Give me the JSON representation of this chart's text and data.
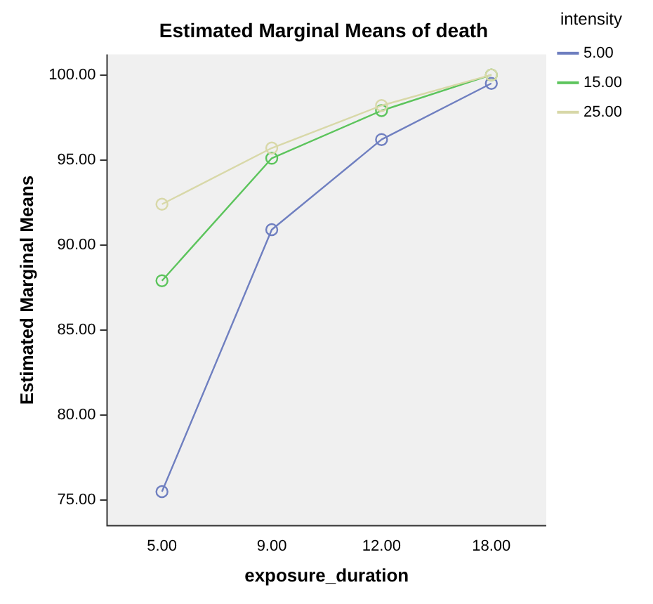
{
  "chart_data": {
    "type": "line",
    "title": "Estimated Marginal Means of death",
    "xlabel": "exposure_duration",
    "ylabel": "Estimated Marginal Means",
    "legend_title": "intensity",
    "categories": [
      "5.00",
      "9.00",
      "12.00",
      "18.00"
    ],
    "series": [
      {
        "name": "5.00",
        "color": "#6f7fc0",
        "values": [
          75.5,
          90.9,
          96.2,
          99.5
        ]
      },
      {
        "name": "15.00",
        "color": "#5cc45c",
        "values": [
          87.9,
          95.1,
          97.9,
          100
        ]
      },
      {
        "name": "25.00",
        "color": "#d8d8a8",
        "values": [
          92.4,
          95.7,
          98.2,
          100
        ]
      }
    ],
    "ylim": [
      73.5,
      101.2
    ],
    "yticks": [
      {
        "value": 75,
        "label": "75.00"
      },
      {
        "value": 80,
        "label": "80.00"
      },
      {
        "value": 85,
        "label": "85.00"
      },
      {
        "value": 90,
        "label": "90.00"
      },
      {
        "value": 95,
        "label": "95.00"
      },
      {
        "value": 100,
        "label": "100.00"
      }
    ],
    "grid": false,
    "legend": "right",
    "marker": "circle",
    "line_style": "solid"
  }
}
